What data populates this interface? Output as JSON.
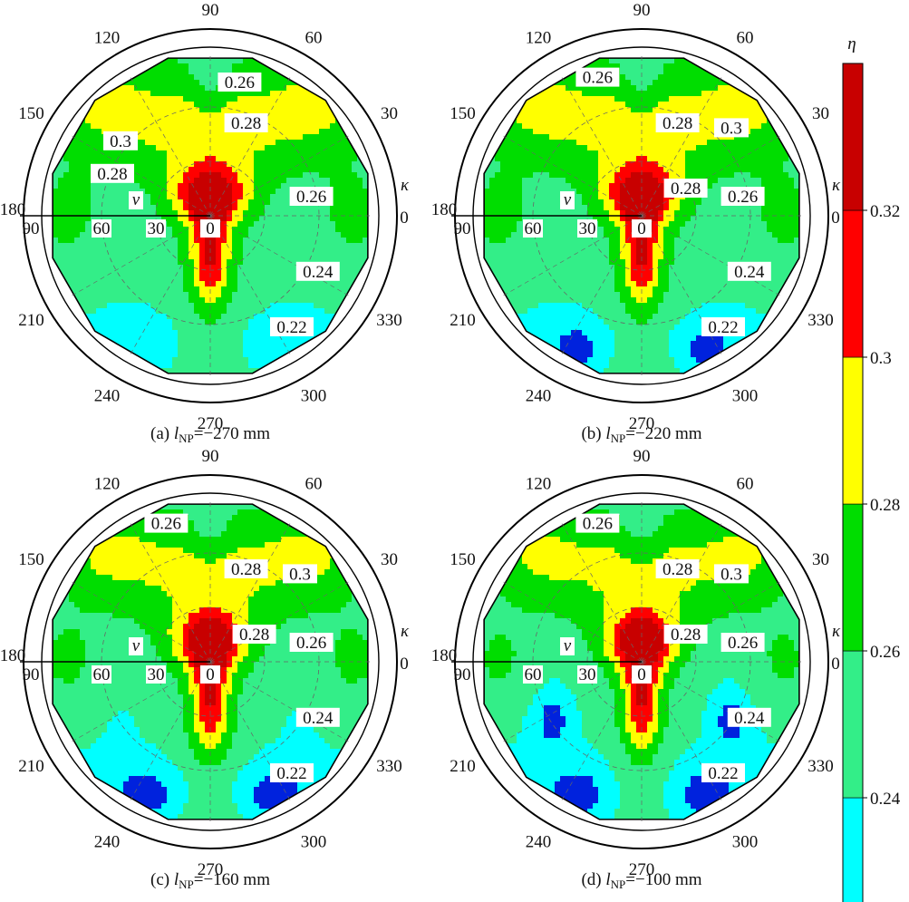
{
  "chart_data": {
    "type": "heatmap",
    "projection": "polar",
    "grid": true,
    "shared_colorbar": {
      "label": "η",
      "tick_labels": [
        "0.24",
        "0.26",
        "0.28",
        "0.3",
        "0.32"
      ],
      "levels": [
        0.22,
        0.24,
        0.26,
        0.28,
        0.3,
        0.32,
        0.34
      ],
      "colors": [
        "#00ffff",
        "#33ee88",
        "#00dd00",
        "#ffff00",
        "#ff0000",
        "#c80000"
      ]
    },
    "angle_axis": {
      "label": "κ",
      "tick_labels": [
        "0",
        "30",
        "60",
        "90",
        "120",
        "150",
        "180",
        "210",
        "240",
        "270",
        "300",
        "330"
      ]
    },
    "radial_axis": {
      "label": "ν",
      "tick_labels": [
        "0",
        "30",
        "60",
        "90"
      ],
      "range": [
        0,
        90
      ]
    },
    "panels": [
      {
        "caption_prefix": "(a) ",
        "caption_var": "l",
        "caption_sub": "NP",
        "caption_suffix": "=−270 mm",
        "contour_labels": [
          "0.26",
          "0.28",
          "0.3",
          "0.28",
          "0.26",
          "0.24",
          "0.22"
        ]
      },
      {
        "caption_prefix": "(b) ",
        "caption_var": "l",
        "caption_sub": "NP",
        "caption_suffix": "=−220 mm",
        "contour_labels": [
          "0.26",
          "0.28",
          "0.3",
          "0.28",
          "0.26",
          "0.24",
          "0.22"
        ]
      },
      {
        "caption_prefix": "(c) ",
        "caption_var": "l",
        "caption_sub": "NP",
        "caption_suffix": "=−160 mm",
        "contour_labels": [
          "0.26",
          "0.28",
          "0.3",
          "0.28",
          "0.26",
          "0.24",
          "0.22"
        ]
      },
      {
        "caption_prefix": "(d) ",
        "caption_var": "l",
        "caption_sub": "NP",
        "caption_suffix": "=−100 mm",
        "contour_labels": [
          "0.26",
          "0.28",
          "0.3",
          "0.28",
          "0.26",
          "0.24",
          "0.22"
        ]
      }
    ]
  }
}
